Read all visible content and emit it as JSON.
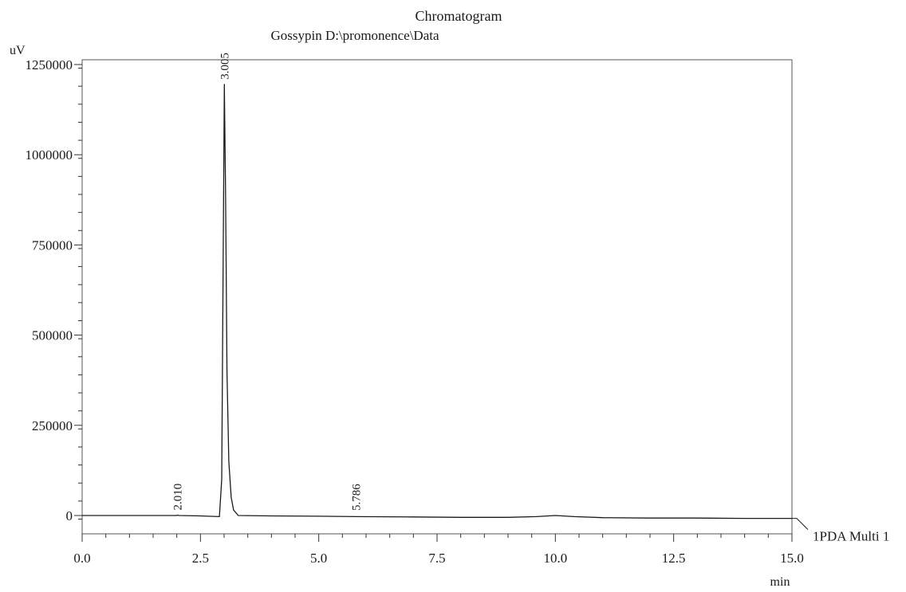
{
  "chart_data": {
    "type": "line",
    "title": "Chromatogram",
    "subtitle": "Gossypin D:\\promonence\\Data",
    "ylabel": "uV",
    "xlabel": "min",
    "xlim": [
      0.0,
      15.0
    ],
    "ylim": [
      -60000,
      1260000
    ],
    "x_ticks": [
      0.0,
      2.5,
      5.0,
      7.5,
      10.0,
      12.5,
      15.0
    ],
    "x_tick_labels": [
      "0.0",
      "2.5",
      "5.0",
      "7.5",
      "10.0",
      "12.5",
      "15.0"
    ],
    "y_ticks": [
      0,
      250000,
      500000,
      750000,
      1000000,
      1250000
    ],
    "y_tick_labels": [
      "0",
      "250000",
      "500000",
      "750000",
      "1000000",
      "1250000"
    ],
    "grid": false,
    "series": [
      {
        "name": "1PDA Multi 1",
        "x": [
          0.0,
          1.0,
          2.0,
          2.01,
          2.05,
          2.5,
          2.9,
          2.95,
          2.98,
          3.005,
          3.03,
          3.06,
          3.1,
          3.15,
          3.2,
          3.3,
          4.0,
          5.0,
          5.786,
          7.0,
          8.0,
          9.0,
          9.6,
          10.0,
          10.4,
          11.0,
          12.0,
          13.0,
          14.0,
          15.0
        ],
        "y": [
          0,
          0,
          0,
          1000,
          0,
          -1000,
          -3000,
          100000,
          700000,
          1195000,
          900000,
          400000,
          150000,
          50000,
          15000,
          0,
          -1000,
          -2000,
          -3000,
          -4000,
          -5000,
          -5000,
          -3000,
          0,
          -3000,
          -6000,
          -7000,
          -7000,
          -8000,
          -8000
        ]
      }
    ],
    "peaks": [
      {
        "rt": 2.01,
        "label": "2.010",
        "y": 1000
      },
      {
        "rt": 3.005,
        "label": "3.005",
        "y": 1195000
      },
      {
        "rt": 5.786,
        "label": "5.786",
        "y": -3000
      }
    ],
    "colors": {
      "line": "#1a1a1a",
      "axis": "#333333",
      "frame": "#555555"
    }
  }
}
